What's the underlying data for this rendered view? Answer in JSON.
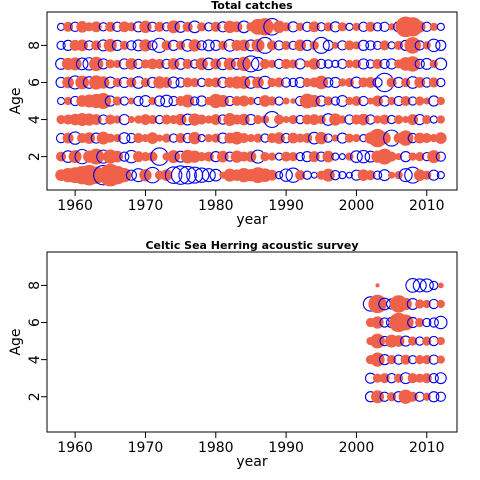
{
  "chart_data": [
    {
      "type": "bubble",
      "title": "Total catches",
      "xlabel": "year",
      "ylabel": "Age",
      "xlim": [
        1956,
        2014.3
      ],
      "ylim": [
        0.2,
        9.8
      ],
      "xticks": [
        1960,
        1970,
        1980,
        1990,
        2000,
        2010
      ],
      "yticks": [
        2,
        4,
        6,
        8
      ],
      "positive_color": "#f0614a",
      "negative_color": "#0000ee",
      "x": [
        1958,
        1959,
        1960,
        1961,
        1962,
        1963,
        1964,
        1965,
        1966,
        1967,
        1968,
        1969,
        1970,
        1971,
        1972,
        1973,
        1974,
        1975,
        1976,
        1977,
        1978,
        1979,
        1980,
        1981,
        1982,
        1983,
        1984,
        1985,
        1986,
        1987,
        1988,
        1989,
        1990,
        1991,
        1992,
        1993,
        1994,
        1995,
        1996,
        1997,
        1998,
        1999,
        2000,
        2001,
        2002,
        2003,
        2004,
        2005,
        2006,
        2007,
        2008,
        2009,
        2010,
        2011,
        2012
      ],
      "y": [
        1,
        2,
        3,
        4,
        5,
        6,
        7,
        8,
        9
      ],
      "values": [
        [
          0.8,
          1.2,
          1.5,
          2.0,
          2.5,
          1.8,
          -2.2,
          3.0,
          2.0,
          1.2,
          -0.6,
          -1.0,
          0.9,
          -1.4,
          0.5,
          0.8,
          -1.6,
          -2.0,
          -1.8,
          -1.5,
          -1.2,
          -1.0,
          -0.8,
          0.3,
          1.0,
          0.8,
          1.2,
          0.9,
          1.5,
          1.1,
          0.7,
          -0.3,
          -0.9,
          -1.2,
          0.6,
          -0.4,
          -0.2,
          0.5,
          1.0,
          -0.5,
          -0.3,
          -0.2,
          -0.6,
          0.8,
          0.6,
          -0.4,
          -0.7,
          0.3,
          0.4,
          -1.0,
          -1.5,
          0.8,
          0.5,
          -0.6,
          -0.3
        ],
        [
          0.6,
          -0.8,
          1.0,
          -1.2,
          0.9,
          1.5,
          -1.0,
          1.2,
          0.8,
          -0.5,
          -0.9,
          0.7,
          0.5,
          0.6,
          -1.8,
          0.4,
          1.0,
          -0.7,
          1.1,
          0.9,
          0.5,
          0.6,
          -0.6,
          0.8,
          -0.5,
          0.9,
          0.6,
          0.7,
          -1.0,
          0.5,
          0.4,
          -0.3,
          0.6,
          0.5,
          -0.4,
          -0.6,
          0.7,
          -0.5,
          0.8,
          -0.3,
          -0.2,
          0.4,
          -0.8,
          -0.9,
          -0.7,
          0.9,
          1.5,
          0.6,
          0.3,
          -0.6,
          0.4,
          0.5,
          -0.4,
          1.0,
          -0.5
        ],
        [
          -0.5,
          0.7,
          -0.9,
          0.6,
          0.8,
          -0.6,
          1.0,
          0.5,
          0.4,
          -0.7,
          -0.5,
          0.6,
          0.4,
          0.8,
          0.3,
          0.5,
          -0.4,
          0.6,
          -0.5,
          0.9,
          -0.3,
          0.4,
          0.5,
          -0.6,
          0.7,
          1.0,
          0.6,
          0.4,
          0.5,
          -0.4,
          0.6,
          0.8,
          -0.5,
          0.7,
          0.5,
          0.6,
          -0.8,
          0.9,
          -0.4,
          0.3,
          -0.6,
          0.5,
          0.4,
          -0.3,
          0.8,
          2.0,
          0.9,
          -1.5,
          0.6,
          1.4,
          -0.5,
          0.7,
          0.6,
          0.4,
          0.8
        ],
        [
          0.5,
          0.6,
          0.8,
          1.0,
          0.9,
          0.7,
          -0.5,
          0.6,
          0.4,
          -0.6,
          0.3,
          0.4,
          0.7,
          0.5,
          -0.4,
          0.6,
          0.5,
          0.8,
          -0.7,
          0.9,
          0.6,
          0.4,
          0.7,
          -0.5,
          1.0,
          0.6,
          0.8,
          -0.6,
          0.5,
          0.4,
          -1.5,
          0.6,
          0.3,
          0.5,
          -0.4,
          0.6,
          0.7,
          0.5,
          -0.8,
          0.9,
          0.4,
          -0.5,
          0.6,
          0.8,
          -0.5,
          0.4,
          0.6,
          -0.4,
          0.5,
          0.3,
          0.7,
          -0.6,
          0.5,
          -0.3,
          0.4
        ],
        [
          -0.3,
          0.4,
          -0.5,
          0.8,
          1.0,
          1.2,
          1.5,
          -0.6,
          0.5,
          -0.4,
          0.3,
          -0.5,
          -0.7,
          0.4,
          -0.6,
          -0.8,
          -0.5,
          0.6,
          1.0,
          -0.4,
          -0.6,
          0.4,
          1.2,
          0.9,
          -0.5,
          0.6,
          0.7,
          0.4,
          -0.3,
          0.8,
          0.5,
          -0.4,
          0.3,
          0.2,
          -0.5,
          1.3,
          0.9,
          -0.6,
          0.5,
          -0.4,
          -0.7,
          0.4,
          0.6,
          -0.5,
          0.3,
          0.7,
          -0.6,
          0.4,
          -0.5,
          0.6,
          -0.4,
          0.5,
          0.3,
          -0.6,
          0.4
        ],
        [
          -0.6,
          0.8,
          -1.0,
          1.1,
          -0.8,
          1.2,
          0.9,
          -0.7,
          0.5,
          -0.6,
          0.6,
          -0.8,
          0.5,
          -0.6,
          0.9,
          0.7,
          -0.7,
          -0.5,
          0.6,
          0.5,
          -0.4,
          0.5,
          0.6,
          -0.6,
          0.7,
          0.9,
          1.0,
          -0.8,
          0.8,
          -0.9,
          0.5,
          0.6,
          -0.5,
          -0.4,
          -0.6,
          0.5,
          0.6,
          1.1,
          -0.5,
          -0.6,
          0.4,
          0.5,
          -0.7,
          0.6,
          0.7,
          -0.5,
          -2.0,
          0.6,
          -0.6,
          0.5,
          -0.8,
          0.7,
          -0.5,
          0.6,
          -0.4
        ],
        [
          -0.7,
          0.9,
          1.0,
          -0.8,
          -0.9,
          1.2,
          -0.6,
          0.5,
          0.4,
          -0.6,
          0.8,
          -0.5,
          0.5,
          0.7,
          0.6,
          -0.5,
          0.8,
          -0.7,
          0.6,
          -0.4,
          0.9,
          -0.8,
          0.7,
          -0.8,
          0.9,
          -0.7,
          1.2,
          -1.5,
          -1.0,
          0.6,
          0.4,
          -0.5,
          0.6,
          0.5,
          -0.6,
          0.3,
          0.8,
          -0.5,
          -0.4,
          -0.3,
          -0.5,
          0.4,
          0.5,
          -0.6,
          -0.4,
          0.6,
          -0.5,
          -0.6,
          0.5,
          1.1,
          1.4,
          -0.5,
          -0.7,
          0.4,
          -0.8
        ],
        [
          -0.4,
          -0.6,
          0.7,
          0.8,
          -0.5,
          0.6,
          -0.7,
          1.0,
          -0.6,
          0.5,
          -0.5,
          -0.7,
          0.9,
          -0.5,
          -1.2,
          0.6,
          -0.6,
          0.5,
          -0.8,
          0.9,
          -0.5,
          -0.7,
          -0.6,
          0.5,
          -0.8,
          0.7,
          0.8,
          -0.7,
          1.0,
          -1.5,
          0.6,
          -0.5,
          0.5,
          -0.4,
          0.8,
          -0.6,
          0.5,
          -1.5,
          -0.6,
          0.3,
          -0.5,
          0.6,
          0.4,
          -0.6,
          -0.5,
          -0.4,
          0.6,
          -0.3,
          0.5,
          -0.6,
          1.6,
          -0.5,
          0.4,
          -0.9,
          -0.6
        ],
        [
          -0.3,
          0.6,
          -0.5,
          0.8,
          0.5,
          0.7,
          -0.4,
          0.6,
          -0.5,
          0.7,
          0.5,
          -0.6,
          0.9,
          -0.5,
          0.6,
          -0.4,
          1.0,
          -0.7,
          0.6,
          -0.8,
          0.5,
          -0.4,
          0.6,
          -0.6,
          0.9,
          0.7,
          -0.8,
          0.5,
          1.5,
          1.8,
          -1.6,
          0.9,
          0.5,
          -0.6,
          0.4,
          -0.5,
          0.7,
          -0.4,
          0.5,
          -0.6,
          0.5,
          -0.3,
          0.4,
          -0.5,
          0.6,
          -0.4,
          -0.5,
          0.3,
          -0.6,
          2.5,
          2.2,
          0.8,
          -0.5,
          0.4,
          -0.3
        ]
      ]
    },
    {
      "type": "bubble",
      "title": "Celtic Sea Herring acoustic survey",
      "xlabel": "year",
      "ylabel": "Age",
      "xlim": [
        1956,
        2014.3
      ],
      "ylim": [
        0.1,
        9.8
      ],
      "xticks": [
        1960,
        1970,
        1980,
        1990,
        2000,
        2010
      ],
      "yticks": [
        2,
        4,
        6,
        8
      ],
      "positive_color": "#f0614a",
      "negative_color": "#0000ee",
      "x": [
        2002,
        2003,
        2004,
        2005,
        2006,
        2007,
        2008,
        2009,
        2010,
        2011,
        2012
      ],
      "y": [
        2,
        3,
        4,
        5,
        6,
        7,
        8
      ],
      "values": [
        [
          -0.6,
          1.0,
          -0.5,
          0.5,
          -0.6,
          1.2,
          0.6,
          -0.5,
          0.4,
          -0.6,
          -0.5
        ],
        [
          -0.6,
          0.5,
          0.6,
          -0.5,
          0.5,
          -0.7,
          0.6,
          0.5,
          0.6,
          -0.5,
          -0.7
        ],
        [
          0.5,
          1.2,
          -0.6,
          0.5,
          -0.5,
          0.6,
          -0.4,
          0.5,
          0.5,
          -0.5,
          0.4
        ],
        [
          0.4,
          1.3,
          -0.5,
          1.0,
          0.8,
          -0.6,
          0.5,
          -0.4,
          0.5,
          -0.5,
          0.4
        ],
        [
          0.5,
          0.9,
          -0.5,
          -0.6,
          2.2,
          1.5,
          -0.6,
          0.5,
          -0.4,
          -0.5,
          -0.9
        ],
        [
          -1.2,
          2.0,
          -0.8,
          -0.6,
          1.8,
          0.9,
          -0.7,
          0.5,
          0.4,
          -0.5,
          0.4
        ],
        [
          null,
          0.1,
          null,
          null,
          null,
          null,
          -1.1,
          -1.0,
          -1.0,
          -0.4,
          0.2
        ]
      ]
    }
  ]
}
